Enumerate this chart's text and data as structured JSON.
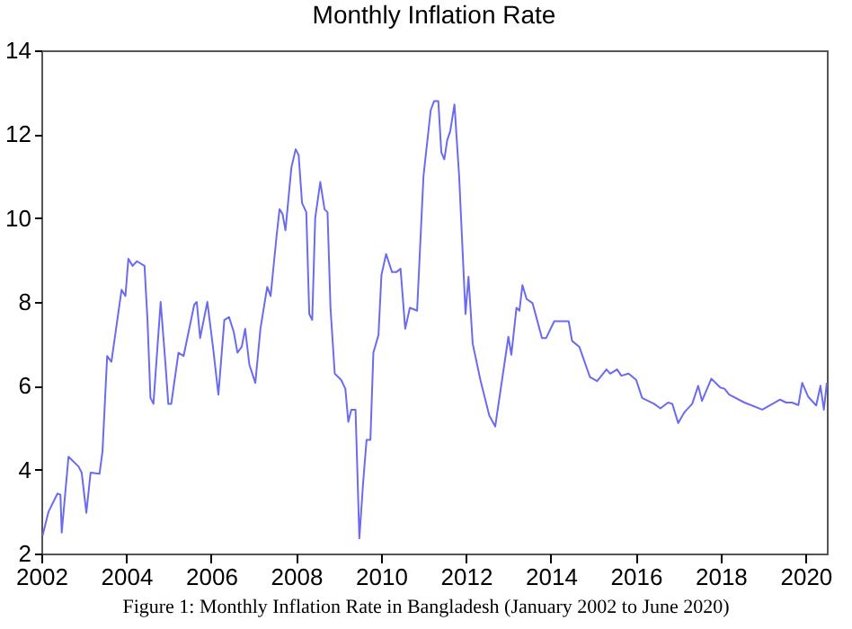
{
  "chart_data": {
    "type": "line",
    "title": "Monthly Inflation Rate",
    "annotations": [
      "Figure 1: Monthly Inflation Rate in Bangladesh (January 2002 to June 2020)"
    ],
    "xlim": [
      2002,
      2020.5
    ],
    "xticks": [
      2002,
      2004,
      2006,
      2008,
      2010,
      2012,
      2014,
      2016,
      2018,
      2020
    ],
    "ylim": [
      2,
      14
    ],
    "yticks": [
      2,
      4,
      6,
      8,
      10,
      12,
      14
    ],
    "grid": false,
    "legend": false,
    "x": [
      2002.03,
      2002.17,
      2002.38,
      2002.45,
      2002.48,
      2002.64,
      2002.88,
      2002.95,
      2003.06,
      2003.16,
      2003.37,
      2003.44,
      2003.55,
      2003.65,
      2003.89,
      2003.98,
      2004.05,
      2004.15,
      2004.25,
      2004.43,
      2004.5,
      2004.57,
      2004.64,
      2004.81,
      2004.92,
      2004.99,
      2005.06,
      2005.23,
      2005.35,
      2005.6,
      2005.66,
      2005.74,
      2005.91,
      2006.05,
      2006.17,
      2006.31,
      2006.42,
      2006.53,
      2006.62,
      2006.72,
      2006.8,
      2006.9,
      2007.04,
      2007.16,
      2007.32,
      2007.4,
      2007.54,
      2007.61,
      2007.68,
      2007.75,
      2007.89,
      2007.99,
      2008.06,
      2008.14,
      2008.24,
      2008.31,
      2008.38,
      2008.45,
      2008.57,
      2008.67,
      2008.74,
      2008.81,
      2008.91,
      2009.06,
      2009.16,
      2009.23,
      2009.3,
      2009.4,
      2009.49,
      2009.58,
      2009.66,
      2009.75,
      2009.82,
      2009.94,
      2010.01,
      2010.12,
      2010.26,
      2010.36,
      2010.46,
      2010.57,
      2010.68,
      2010.85,
      2011.0,
      2011.17,
      2011.25,
      2011.35,
      2011.42,
      2011.49,
      2011.56,
      2011.63,
      2011.73,
      2011.84,
      2011.99,
      2012.06,
      2012.16,
      2012.34,
      2012.55,
      2012.69,
      2013.0,
      2013.07,
      2013.19,
      2013.26,
      2013.33,
      2013.43,
      2013.57,
      2013.79,
      2013.89,
      2014.08,
      2014.42,
      2014.5,
      2014.67,
      2014.92,
      2015.09,
      2015.31,
      2015.4,
      2015.56,
      2015.66,
      2015.83,
      2016.01,
      2016.15,
      2016.29,
      2016.43,
      2016.58,
      2016.76,
      2016.86,
      2017.0,
      2017.14,
      2017.33,
      2017.47,
      2017.56,
      2017.78,
      2017.99,
      2018.09,
      2018.2,
      2018.56,
      2018.98,
      2019.4,
      2019.54,
      2019.68,
      2019.83,
      2019.92,
      2020.06,
      2020.25,
      2020.35,
      2020.43,
      2020.5
    ],
    "series": [
      {
        "color": "#6b6bf0",
        "values": [
          2.43,
          3.0,
          3.43,
          3.4,
          2.5,
          4.31,
          4.07,
          3.93,
          2.97,
          3.93,
          3.9,
          4.43,
          6.71,
          6.57,
          8.29,
          8.14,
          9.03,
          8.86,
          8.97,
          8.86,
          7.57,
          5.71,
          5.57,
          8.0,
          6.57,
          5.57,
          5.57,
          6.79,
          6.71,
          7.93,
          8.0,
          7.14,
          8.0,
          6.86,
          5.79,
          7.57,
          7.64,
          7.29,
          6.79,
          6.93,
          7.36,
          6.5,
          6.07,
          7.36,
          8.36,
          8.14,
          9.57,
          10.21,
          10.1,
          9.71,
          11.21,
          11.64,
          11.5,
          10.36,
          10.14,
          7.71,
          7.57,
          10.0,
          10.86,
          10.21,
          10.14,
          7.86,
          6.29,
          6.14,
          5.93,
          5.14,
          5.43,
          5.43,
          2.36,
          3.71,
          4.71,
          4.71,
          6.79,
          7.21,
          8.64,
          9.14,
          8.71,
          8.71,
          8.79,
          7.36,
          7.86,
          7.79,
          11.0,
          12.57,
          12.79,
          12.79,
          11.57,
          11.4,
          11.86,
          12.07,
          12.71,
          11.0,
          7.71,
          8.6,
          7.0,
          6.14,
          5.29,
          5.03,
          7.17,
          6.74,
          7.86,
          7.79,
          8.4,
          8.07,
          7.97,
          7.14,
          7.14,
          7.54,
          7.54,
          7.07,
          6.93,
          6.21,
          6.11,
          6.39,
          6.29,
          6.39,
          6.24,
          6.29,
          6.14,
          5.71,
          5.64,
          5.57,
          5.46,
          5.6,
          5.57,
          5.11,
          5.36,
          5.57,
          6.0,
          5.64,
          6.17,
          5.96,
          5.93,
          5.79,
          5.6,
          5.43,
          5.67,
          5.6,
          5.6,
          5.54,
          6.07,
          5.74,
          5.53,
          6.0,
          5.43,
          6.07
        ]
      }
    ]
  }
}
